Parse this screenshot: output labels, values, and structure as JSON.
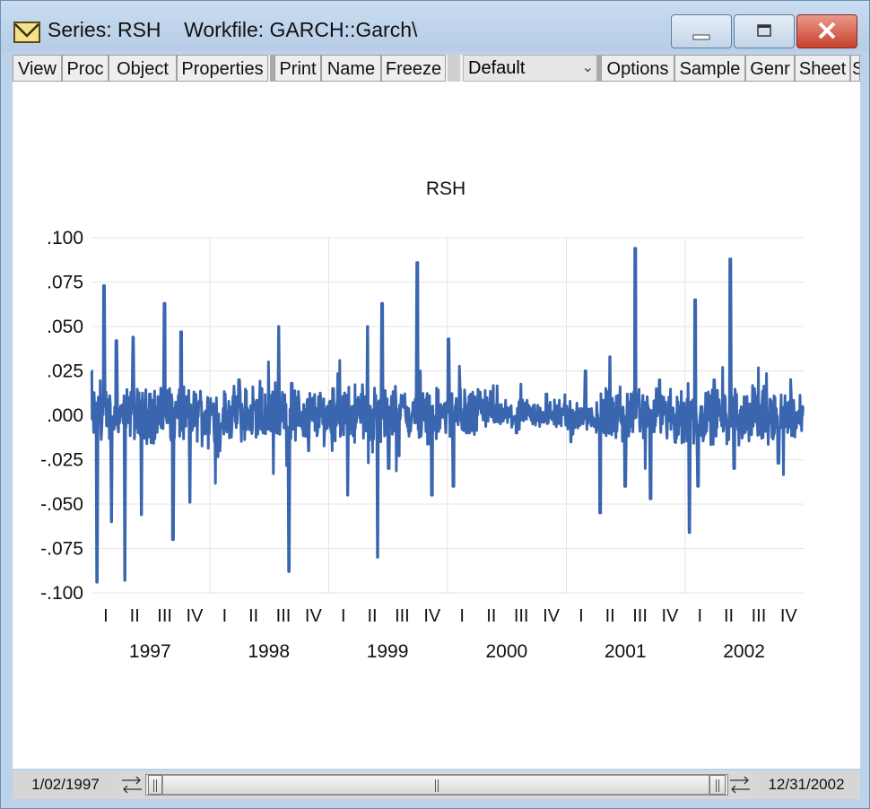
{
  "window": {
    "title": "Series: RSH    Workfile: GARCH::Garch\\"
  },
  "toolbar": {
    "buttons": [
      "View",
      "Proc",
      "Object",
      "Properties",
      "Print",
      "Name",
      "Freeze"
    ],
    "dropdown_value": "Default",
    "buttons_right": [
      "Options",
      "Sample",
      "Genr",
      "Sheet",
      "S"
    ]
  },
  "status": {
    "start_date": "1/02/1997",
    "end_date": "12/31/2002"
  },
  "colors": {
    "series_line": "#3a66b0",
    "grid": "#e4e4e4"
  },
  "chart_data": {
    "type": "line",
    "title": "RSH",
    "xlabel": "",
    "ylabel": "",
    "ylim": [
      -0.1,
      0.1
    ],
    "y_ticks": [
      ".100",
      ".075",
      ".050",
      ".025",
      ".000",
      "-.025",
      "-.050",
      "-.075",
      "-.100"
    ],
    "x_quarter_labels": [
      "I",
      "II",
      "III",
      "IV",
      "I",
      "II",
      "III",
      "IV",
      "I",
      "II",
      "III",
      "IV",
      "I",
      "II",
      "III",
      "IV",
      "I",
      "II",
      "III",
      "IV",
      "I",
      "II",
      "III",
      "IV"
    ],
    "x_year_labels": [
      "1997",
      "1998",
      "1999",
      "2000",
      "2001",
      "2002"
    ],
    "x_range": [
      "1/02/1997",
      "12/31/2002"
    ],
    "grid": true,
    "series": [
      {
        "values_note": "daily returns, approximate shape",
        "x": [
          "1997-01-02",
          "1997-01-20",
          "1997-02-10",
          "1997-03-05",
          "1997-03-20",
          "1997-04-15",
          "1997-05-10",
          "1997-06-05",
          "1997-07-01",
          "1997-08-15",
          "1997-09-10",
          "1997-10-05",
          "1997-11-01",
          "1997-12-01",
          "1998-02-01",
          "1998-04-01",
          "1998-06-15",
          "1998-08-01",
          "1998-09-01",
          "1998-09-10",
          "1998-11-01",
          "1999-01-15",
          "1999-03-01",
          "1999-05-01",
          "1999-06-01",
          "1999-06-15",
          "1999-07-05",
          "1999-08-15",
          "1999-10-01",
          "1999-11-15",
          "2000-01-05",
          "2000-01-20",
          "2000-02-10",
          "2000-03-01",
          "2000-05-01",
          "2000-08-01",
          "2000-11-01",
          "2001-01-15",
          "2001-03-01",
          "2001-04-15",
          "2001-05-15",
          "2001-07-01",
          "2001-08-01",
          "2001-09-17",
          "2001-10-15",
          "2001-12-01",
          "2002-01-15",
          "2002-02-01",
          "2002-02-10",
          "2002-04-01",
          "2002-05-20",
          "2002-06-01",
          "2002-08-01",
          "2002-10-15",
          "2002-12-31"
        ],
        "values": [
          0.025,
          -0.094,
          0.073,
          -0.06,
          0.042,
          -0.093,
          0.044,
          -0.056,
          0.012,
          0.063,
          -0.07,
          0.047,
          -0.049,
          0.008,
          -0.02,
          0.02,
          -0.01,
          0.05,
          -0.088,
          0.018,
          -0.02,
          0.015,
          -0.045,
          0.05,
          -0.08,
          0.063,
          -0.03,
          0.01,
          0.086,
          -0.045,
          0.043,
          -0.04,
          0.015,
          -0.01,
          0.01,
          -0.01,
          0.012,
          -0.015,
          0.025,
          -0.055,
          0.033,
          -0.04,
          0.094,
          -0.047,
          0.02,
          -0.015,
          -0.066,
          0.065,
          -0.04,
          0.02,
          0.088,
          -0.03,
          0.015,
          -0.027,
          0.005
        ]
      }
    ]
  }
}
